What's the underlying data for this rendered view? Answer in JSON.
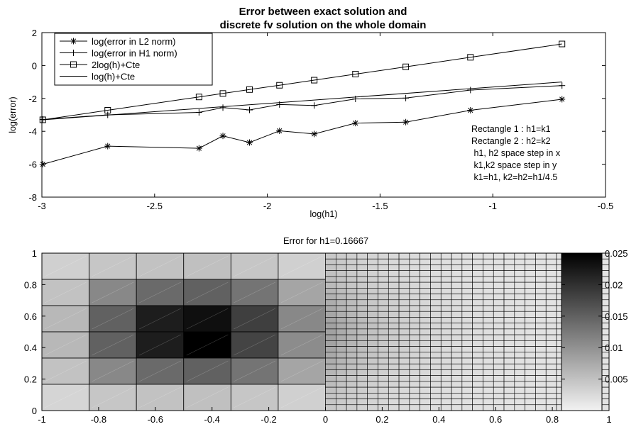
{
  "chart_data": [
    {
      "type": "line",
      "title_lines": [
        "Error between exact solution and",
        "discrete fv solution on the whole domain"
      ],
      "xlabel": "log(h1)",
      "ylabel": "log(error)",
      "xlim": [
        -3,
        -0.5
      ],
      "ylim": [
        -8,
        2
      ],
      "xticks": [
        "-3",
        "-2.5",
        "-2",
        "-1.5",
        "-1",
        "-0.5"
      ],
      "yticks": [
        "-8",
        "-6",
        "-4",
        "-2",
        "0",
        "2"
      ],
      "legend_position": "top-left",
      "series": [
        {
          "name": "log(error in L2 norm)",
          "marker": "asterisk",
          "x": [
            -2.996,
            -2.708,
            -2.303,
            -2.197,
            -2.079,
            -1.946,
            -1.792,
            -1.609,
            -1.386,
            -1.099,
            -0.693
          ],
          "y": [
            -6.0,
            -4.9,
            -5.03,
            -4.28,
            -4.68,
            -3.97,
            -4.16,
            -3.5,
            -3.44,
            -2.72,
            -2.05
          ]
        },
        {
          "name": "log(error in H1 norm)",
          "marker": "plus",
          "x": [
            -2.996,
            -2.708,
            -2.303,
            -2.197,
            -2.079,
            -1.946,
            -1.792,
            -1.609,
            -1.386,
            -1.099,
            -0.693
          ],
          "y": [
            -3.28,
            -3.0,
            -2.85,
            -2.56,
            -2.7,
            -2.37,
            -2.43,
            -2.03,
            -1.98,
            -1.49,
            -1.22
          ]
        },
        {
          "name": "2log(h)+Cte",
          "marker": "square",
          "x": [
            -2.996,
            -2.708,
            -2.303,
            -2.197,
            -2.079,
            -1.946,
            -1.792,
            -1.609,
            -1.386,
            -1.099,
            -0.693
          ],
          "y": [
            -3.3,
            -2.72,
            -1.91,
            -1.7,
            -1.46,
            -1.2,
            -0.89,
            -0.52,
            -0.08,
            0.5,
            1.31
          ]
        },
        {
          "name": "log(h)+Cte",
          "marker": "none",
          "x": [
            -2.996,
            -0.693
          ],
          "y": [
            -3.3,
            -1.0
          ]
        }
      ],
      "annotation_lines": [
        "Rectangle 1 : h1=k1",
        "Rectangle 2 : h2=k2",
        " h1, h2 space step in x",
        " k1,k2 space step in y",
        " k1=h1, k2=h2=h1/4.5"
      ]
    },
    {
      "type": "heatmap",
      "title": "Error for h1=0.16667",
      "xlim": [
        -1,
        1
      ],
      "ylim": [
        0,
        1
      ],
      "xticks": [
        "-1",
        "-0.8",
        "-0.6",
        "-0.4",
        "-0.2",
        "0",
        "0.2",
        "0.4",
        "0.6",
        "0.8",
        "1"
      ],
      "yticks": [
        "0",
        "0.2",
        "0.4",
        "0.6",
        "0.8",
        "1"
      ],
      "colormap": "gray-reversed",
      "color_range": [
        0,
        0.025
      ],
      "colorbar_ticks": [
        "0.005",
        "0.01",
        "0.015",
        "0.02",
        "0.025"
      ],
      "left_region": {
        "x_range": [
          -1,
          0
        ],
        "columns": 6,
        "rows": 6,
        "values_top_to_bottom": [
          [
            0.0035,
            0.0045,
            0.005,
            0.0052,
            0.0045,
            0.0035
          ],
          [
            0.005,
            0.011,
            0.014,
            0.015,
            0.013,
            0.008
          ],
          [
            0.006,
            0.015,
            0.022,
            0.0235,
            0.0185,
            0.011
          ],
          [
            0.006,
            0.015,
            0.022,
            0.025,
            0.018,
            0.0105
          ],
          [
            0.005,
            0.011,
            0.014,
            0.015,
            0.013,
            0.008
          ],
          [
            0.003,
            0.0045,
            0.005,
            0.0052,
            0.0045,
            0.0035
          ]
        ]
      },
      "right_region": {
        "x_range": [
          0,
          1
        ],
        "columns": 27,
        "rows": 27,
        "value_at_left_edge": 0.009,
        "value_far": 0.0015
      }
    }
  ]
}
